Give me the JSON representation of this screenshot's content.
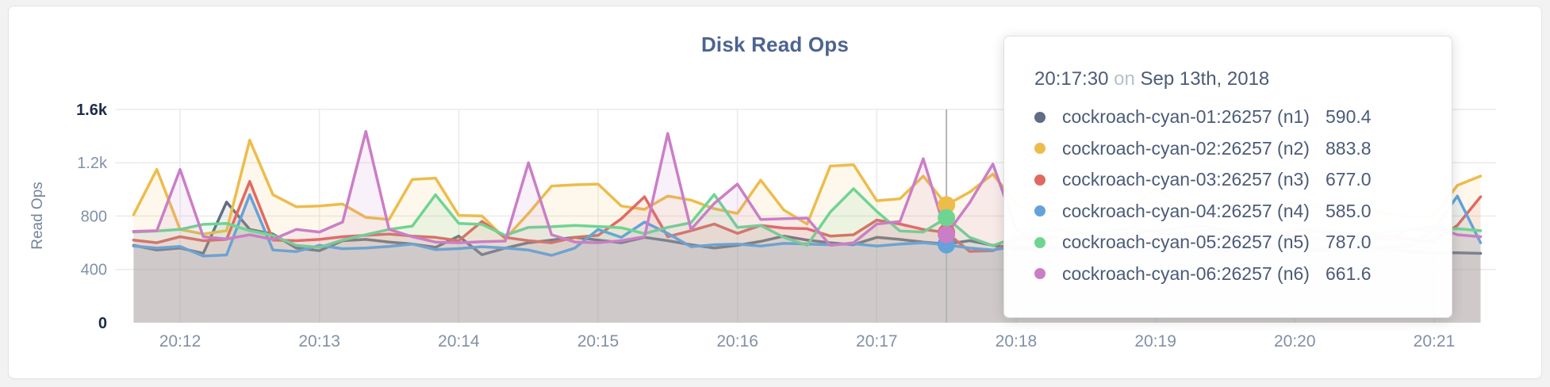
{
  "page": {
    "title": "Disk Read Ops"
  },
  "colors": {
    "title": "#4c6490",
    "axis_text": "#8191a5",
    "axis_text_strong": "#1e2c49",
    "axis_title": "#76849a",
    "grid": "#ebebeb",
    "tooltip_text": "#4c5b77",
    "tooltip_muted": "#b8bfc9",
    "card_border": "#e4e4e4",
    "page_bg": "#f2f2f2"
  },
  "tooltip": {
    "time": "20:17:30",
    "on_word": "on",
    "date": "Sep 13th, 2018",
    "rows": [
      {
        "name": "cockroach-cyan-01:26257 (n1)",
        "value": "590.4",
        "color": "#606d84"
      },
      {
        "name": "cockroach-cyan-02:26257 (n2)",
        "value": "883.8",
        "color": "#edbc4c"
      },
      {
        "name": "cockroach-cyan-03:26257 (n3)",
        "value": "677.0",
        "color": "#e16a60"
      },
      {
        "name": "cockroach-cyan-04:26257 (n4)",
        "value": "585.0",
        "color": "#64a2da"
      },
      {
        "name": "cockroach-cyan-05:26257 (n5)",
        "value": "787.0",
        "color": "#6fd492"
      },
      {
        "name": "cockroach-cyan-06:26257 (n6)",
        "value": "661.6",
        "color": "#cb7ec6"
      }
    ]
  },
  "chart_data": {
    "type": "line",
    "title": "Disk Read Ops",
    "xlabel": "",
    "ylabel": "Read Ops",
    "ylim": [
      0,
      1600
    ],
    "grid": true,
    "legend_position": "tooltip-only",
    "x_start": "20:11:40",
    "x_interval_seconds": 10,
    "x_tick_labels": [
      "20:12",
      "20:13",
      "20:14",
      "20:15",
      "20:16",
      "20:17",
      "20:18",
      "20:19",
      "20:20",
      "20:21"
    ],
    "y_ticks": [
      {
        "value": 0,
        "label": "0",
        "strong": true
      },
      {
        "value": 400,
        "label": "400",
        "strong": false
      },
      {
        "value": 800,
        "label": "800",
        "strong": false
      },
      {
        "value": 1200,
        "label": "1.2k",
        "strong": false
      },
      {
        "value": 1600,
        "label": "1.6k",
        "strong": true
      }
    ],
    "highlight": {
      "index": 35,
      "time": "20:17:30",
      "crosshair_color": "#b4b4b4"
    },
    "series": [
      {
        "name": "cockroach-cyan-01:26257 (n1)",
        "node": "n1",
        "color": "#606d84",
        "values": [
          580,
          545,
          560,
          520,
          905,
          700,
          665,
          560,
          540,
          615,
          625,
          605,
          590,
          565,
          650,
          510,
          560,
          600,
          620,
          640,
          620,
          600,
          640,
          615,
          585,
          560,
          580,
          610,
          650,
          620,
          600,
          585,
          640,
          625,
          605,
          590.4,
          615,
          580,
          560,
          545,
          570,
          590,
          560,
          545,
          560,
          580,
          555,
          540,
          560,
          575,
          555,
          540,
          555,
          570,
          550,
          530,
          525,
          525,
          520
        ]
      },
      {
        "name": "cockroach-cyan-02:26257 (n2)",
        "node": "n2",
        "color": "#edbc4c",
        "values": [
          810,
          1150,
          700,
          665,
          690,
          1370,
          960,
          870,
          875,
          890,
          790,
          775,
          1075,
          1085,
          805,
          800,
          630,
          820,
          1025,
          1035,
          1040,
          875,
          850,
          950,
          920,
          855,
          820,
          1070,
          845,
          740,
          1175,
          1185,
          915,
          930,
          1100,
          883.8,
          980,
          1115,
          890,
          830,
          860,
          900,
          840,
          870,
          1000,
          900,
          850,
          880,
          840,
          860,
          900,
          870,
          830,
          860,
          820,
          790,
          800,
          1030,
          1100
        ]
      },
      {
        "name": "cockroach-cyan-03:26257 (n3)",
        "node": "n3",
        "color": "#e16a60",
        "values": [
          620,
          600,
          645,
          615,
          625,
          1060,
          620,
          615,
          625,
          645,
          655,
          665,
          650,
          640,
          615,
          760,
          640,
          615,
          600,
          640,
          655,
          780,
          945,
          645,
          690,
          740,
          670,
          730,
          710,
          705,
          650,
          660,
          770,
          740,
          700,
          677,
          535,
          540,
          620,
          650,
          630,
          610,
          640,
          660,
          630,
          615,
          650,
          635,
          620,
          645,
          660,
          630,
          615,
          640,
          650,
          625,
          610,
          730,
          945
        ]
      },
      {
        "name": "cockroach-cyan-04:26257 (n4)",
        "node": "n4",
        "color": "#64a2da",
        "values": [
          575,
          560,
          572,
          500,
          508,
          960,
          545,
          533,
          580,
          555,
          560,
          572,
          590,
          548,
          556,
          570,
          560,
          545,
          505,
          560,
          700,
          640,
          755,
          670,
          570,
          585,
          590,
          575,
          595,
          590,
          585,
          592,
          575,
          590,
          600,
          585,
          560,
          545,
          575,
          560,
          548,
          565,
          580,
          560,
          545,
          565,
          575,
          555,
          540,
          560,
          575,
          550,
          565,
          545,
          560,
          580,
          700,
          950,
          600
        ]
      },
      {
        "name": "cockroach-cyan-05:26257 (n5)",
        "node": "n5",
        "color": "#6fd492",
        "values": [
          680,
          688,
          700,
          738,
          745,
          690,
          655,
          580,
          565,
          620,
          660,
          700,
          725,
          960,
          745,
          738,
          655,
          715,
          720,
          730,
          722,
          712,
          668,
          715,
          750,
          962,
          715,
          730,
          640,
          580,
          830,
          1005,
          835,
          688,
          680,
          787,
          640,
          578,
          640,
          680,
          700,
          670,
          690,
          710,
          680,
          660,
          690,
          705,
          680,
          665,
          690,
          700,
          680,
          660,
          685,
          700,
          690,
          705,
          690
        ]
      },
      {
        "name": "cockroach-cyan-06:26257 (n6)",
        "node": "n6",
        "color": "#cb7ec6",
        "values": [
          685,
          690,
          1150,
          645,
          628,
          660,
          625,
          700,
          680,
          755,
          1435,
          700,
          645,
          605,
          600,
          608,
          612,
          1200,
          660,
          605,
          600,
          615,
          645,
          1420,
          700,
          895,
          1040,
          775,
          780,
          785,
          580,
          600,
          740,
          760,
          1230,
          661.6,
          900,
          1190,
          700,
          580,
          560,
          620,
          650,
          670,
          690,
          710,
          730,
          690,
          660,
          640,
          700,
          685,
          660,
          645,
          625,
          700,
          720,
          660,
          645
        ]
      }
    ]
  }
}
